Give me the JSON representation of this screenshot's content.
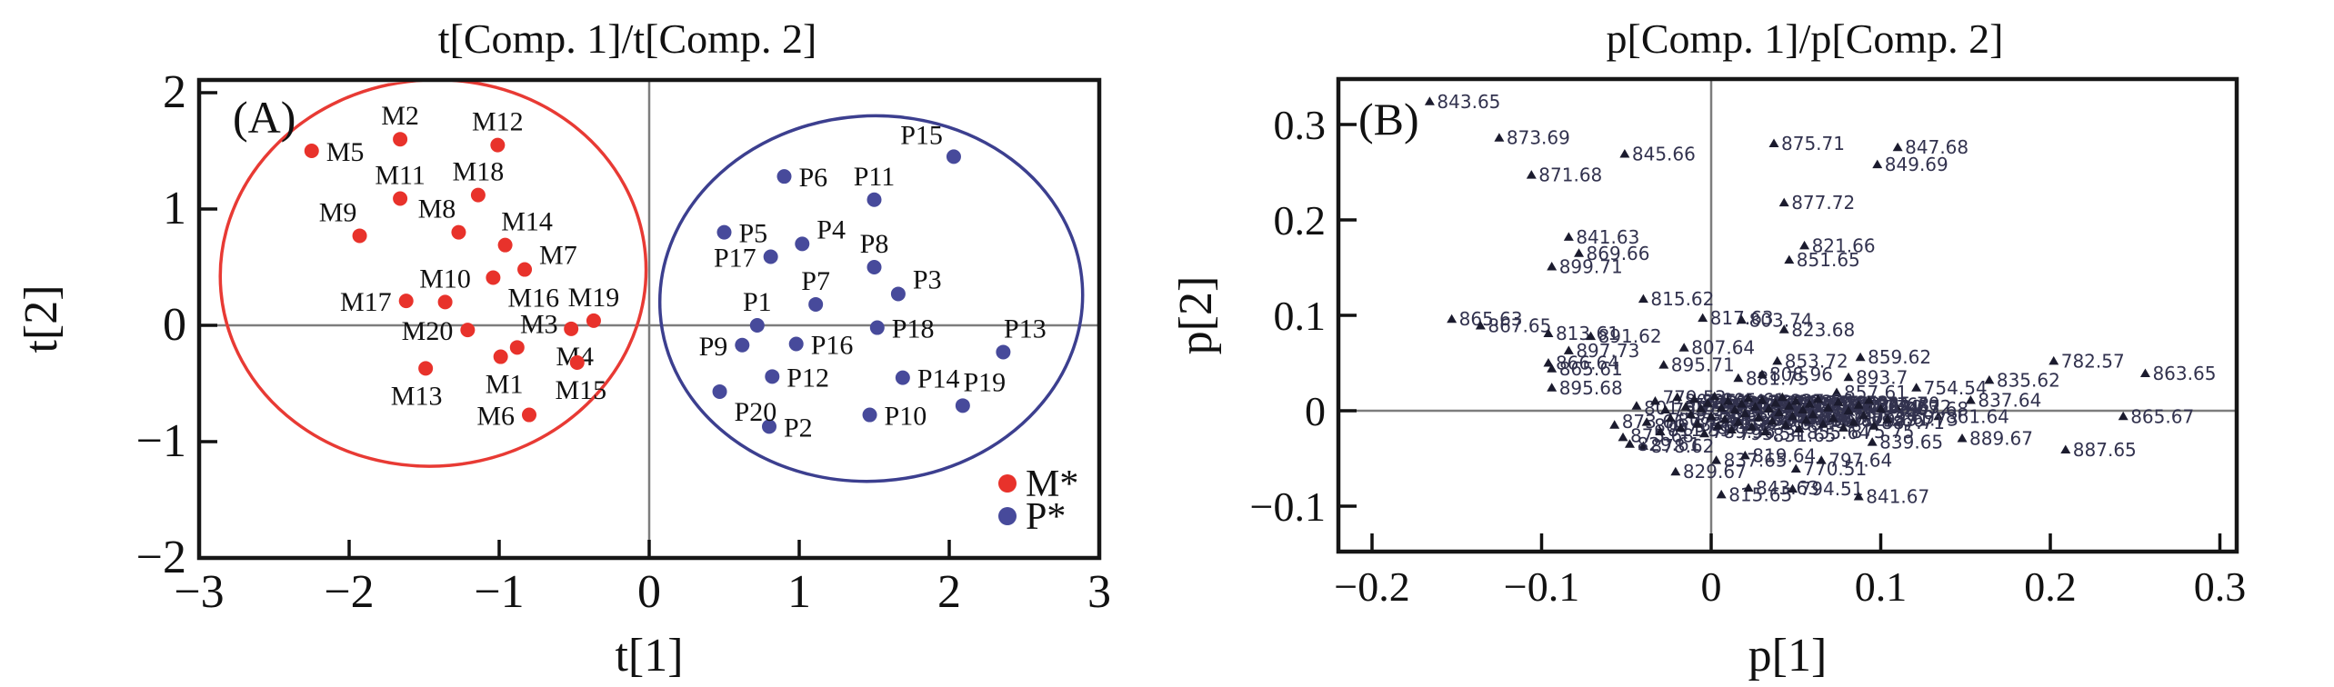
{
  "figure_caption": "",
  "chart_data": [
    {
      "type": "scatter",
      "panel": "A",
      "title": "t[Comp. 1]/t[Comp. 2]",
      "corner_label": "(A)",
      "xlabel": "t[1]",
      "ylabel": "t[2]",
      "xlim": [
        -3,
        3
      ],
      "ylim": [
        -2,
        2.11
      ],
      "grid": false,
      "x_ticks": [
        -3,
        -2,
        -1,
        0,
        1,
        2,
        3
      ],
      "x_tick_labels": [
        "−3",
        "−2",
        "−1",
        "0",
        "1",
        "2",
        "3"
      ],
      "y_ticks": [
        -2,
        -1,
        0,
        1,
        2
      ],
      "y_tick_labels": [
        "−2",
        "−1",
        "0",
        "1",
        "2"
      ],
      "legend": {
        "position": "bottom-right",
        "entries": [
          {
            "label": "M*",
            "color": "#e8322b"
          },
          {
            "label": "P*",
            "color": "#474a9b"
          }
        ]
      },
      "ellipses": [
        {
          "name": "M-cluster-ellipse",
          "color": "#e83a34",
          "cx": -1.44,
          "cy": 0.45,
          "rx": 1.42,
          "ry": 1.66,
          "rot": -5
        },
        {
          "name": "P-cluster-ellipse",
          "color": "#3c3f8f",
          "cx": 1.48,
          "cy": 0.23,
          "rx": 1.41,
          "ry": 1.57,
          "rot": -4
        }
      ],
      "series": [
        {
          "name": "M*",
          "color": "#e8322b",
          "marker": "circle",
          "points": [
            {
              "label": "M1",
              "x": -0.99,
              "y": -0.27,
              "lp": "below"
            },
            {
              "label": "M2",
              "x": -1.66,
              "y": 1.6,
              "lp": "above"
            },
            {
              "label": "M3",
              "x": -0.88,
              "y": -0.19,
              "lp": "above-right"
            },
            {
              "label": "M4",
              "x": -0.52,
              "y": -0.03,
              "lp": "below"
            },
            {
              "label": "M5",
              "x": -2.25,
              "y": 1.5,
              "lp": "right"
            },
            {
              "label": "M6",
              "x": -0.8,
              "y": -0.77,
              "lp": "left"
            },
            {
              "label": "M7",
              "x": -0.83,
              "y": 0.48,
              "lp": "right-above"
            },
            {
              "label": "M8",
              "x": -1.27,
              "y": 0.8,
              "lp": "above-left"
            },
            {
              "label": "M9",
              "x": -1.93,
              "y": 0.77,
              "lp": "above-left"
            },
            {
              "label": "M10",
              "x": -1.36,
              "y": 0.2,
              "lp": "above"
            },
            {
              "label": "M11",
              "x": -1.66,
              "y": 1.09,
              "lp": "above"
            },
            {
              "label": "M12",
              "x": -1.01,
              "y": 1.55,
              "lp": "above"
            },
            {
              "label": "M13",
              "x": -1.49,
              "y": -0.37,
              "lp": "below-left"
            },
            {
              "label": "M14",
              "x": -0.96,
              "y": 0.69,
              "lp": "above-right"
            },
            {
              "label": "M15",
              "x": -0.48,
              "y": -0.32,
              "lp": "below"
            },
            {
              "label": "M16",
              "x": -1.04,
              "y": 0.41,
              "lp": "below-right"
            },
            {
              "label": "M17",
              "x": -1.62,
              "y": 0.21,
              "lp": "left"
            },
            {
              "label": "M18",
              "x": -1.14,
              "y": 1.12,
              "lp": "above"
            },
            {
              "label": "M19",
              "x": -0.37,
              "y": 0.04,
              "lp": "above"
            },
            {
              "label": "M20",
              "x": -1.21,
              "y": -0.04,
              "lp": "left"
            }
          ]
        },
        {
          "name": "P*",
          "color": "#474a9b",
          "marker": "circle",
          "points": [
            {
              "label": "P1",
              "x": 0.72,
              "y": 0.0,
              "lp": "above"
            },
            {
              "label": "P2",
              "x": 0.8,
              "y": -0.87,
              "lp": "right"
            },
            {
              "label": "P3",
              "x": 1.66,
              "y": 0.27,
              "lp": "right-above"
            },
            {
              "label": "P4",
              "x": 1.02,
              "y": 0.7,
              "lp": "right-above"
            },
            {
              "label": "P5",
              "x": 0.5,
              "y": 0.8,
              "lp": "right"
            },
            {
              "label": "P6",
              "x": 0.9,
              "y": 1.28,
              "lp": "right"
            },
            {
              "label": "P7",
              "x": 1.11,
              "y": 0.18,
              "lp": "above"
            },
            {
              "label": "P8",
              "x": 1.5,
              "y": 0.5,
              "lp": "above"
            },
            {
              "label": "P9",
              "x": 0.62,
              "y": -0.17,
              "lp": "left"
            },
            {
              "label": "P10",
              "x": 1.47,
              "y": -0.77,
              "lp": "right"
            },
            {
              "label": "P11",
              "x": 1.5,
              "y": 1.08,
              "lp": "above"
            },
            {
              "label": "P12",
              "x": 0.82,
              "y": -0.44,
              "lp": "right"
            },
            {
              "label": "P13",
              "x": 2.36,
              "y": -0.23,
              "lp": "above-right"
            },
            {
              "label": "P14",
              "x": 1.69,
              "y": -0.45,
              "lp": "right"
            },
            {
              "label": "P15",
              "x": 2.03,
              "y": 1.45,
              "lp": "left-above"
            },
            {
              "label": "P16",
              "x": 0.98,
              "y": -0.16,
              "lp": "right"
            },
            {
              "label": "P17",
              "x": 0.81,
              "y": 0.59,
              "lp": "left"
            },
            {
              "label": "P18",
              "x": 1.52,
              "y": -0.02,
              "lp": "right"
            },
            {
              "label": "P19",
              "x": 2.09,
              "y": -0.69,
              "lp": "above-right"
            },
            {
              "label": "P20",
              "x": 0.47,
              "y": -0.57,
              "lp": "below-right"
            }
          ]
        }
      ]
    },
    {
      "type": "scatter",
      "panel": "B",
      "title": "p[Comp. 1]/p[Comp. 2]",
      "corner_label": "(B)",
      "xlabel": "p[1]",
      "ylabel": "p[2]",
      "xlim": [
        -0.22,
        0.31
      ],
      "ylim": [
        -0.148,
        0.348
      ],
      "grid": false,
      "marker": "triangle",
      "marker_color": "#1b1b2e",
      "label_color": "#32324e",
      "x_ticks": [
        -0.2,
        -0.1,
        0,
        0.1,
        0.2,
        0.3
      ],
      "x_tick_labels": [
        "−0.2",
        "−0.1",
        "0",
        "0.1",
        "0.2",
        "0.3"
      ],
      "y_ticks": [
        -0.1,
        0,
        0.1,
        0.2,
        0.3
      ],
      "y_tick_labels": [
        "−0.1",
        "0",
        "0.1",
        "0.2",
        "0.3"
      ],
      "points": [
        {
          "x": -0.166,
          "y": 0.324,
          "label": "843.65"
        },
        {
          "x": -0.125,
          "y": 0.286,
          "label": "873.69"
        },
        {
          "x": -0.051,
          "y": 0.269,
          "label": "845.66"
        },
        {
          "x": -0.106,
          "y": 0.247,
          "label": "871.68"
        },
        {
          "x": 0.037,
          "y": 0.28,
          "label": "875.71"
        },
        {
          "x": 0.11,
          "y": 0.276,
          "label": "847.68"
        },
        {
          "x": 0.098,
          "y": 0.258,
          "label": "849.69"
        },
        {
          "x": 0.043,
          "y": 0.218,
          "label": "877.72"
        },
        {
          "x": -0.084,
          "y": 0.182,
          "label": "841.63"
        },
        {
          "x": -0.078,
          "y": 0.165,
          "label": "869.66"
        },
        {
          "x": -0.094,
          "y": 0.151,
          "label": "899.71"
        },
        {
          "x": 0.055,
          "y": 0.173,
          "label": "821.66"
        },
        {
          "x": 0.046,
          "y": 0.158,
          "label": "851.65"
        },
        {
          "x": -0.04,
          "y": 0.117,
          "label": "815.62"
        },
        {
          "x": -0.153,
          "y": 0.096,
          "label": "865.63"
        },
        {
          "x": -0.136,
          "y": 0.089,
          "label": "867.65"
        },
        {
          "x": -0.096,
          "y": 0.081,
          "label": "813.61"
        },
        {
          "x": -0.071,
          "y": 0.078,
          "label": "891.62"
        },
        {
          "x": -0.084,
          "y": 0.063,
          "label": "897.73"
        },
        {
          "x": -0.096,
          "y": 0.05,
          "label": "866.64"
        },
        {
          "x": -0.094,
          "y": 0.044,
          "label": "865.61"
        },
        {
          "x": -0.094,
          "y": 0.024,
          "label": "895.68"
        },
        {
          "x": -0.005,
          "y": 0.097,
          "label": "817.63"
        },
        {
          "x": 0.018,
          "y": 0.095,
          "label": "803.74"
        },
        {
          "x": 0.043,
          "y": 0.085,
          "label": "823.68"
        },
        {
          "x": -0.016,
          "y": 0.066,
          "label": "807.64"
        },
        {
          "x": -0.028,
          "y": 0.048,
          "label": "895.71"
        },
        {
          "x": 0.088,
          "y": 0.056,
          "label": "859.62"
        },
        {
          "x": 0.039,
          "y": 0.052,
          "label": "853.72"
        },
        {
          "x": 0.081,
          "y": 0.035,
          "label": "893.7"
        },
        {
          "x": 0.016,
          "y": 0.034,
          "label": "881.75"
        },
        {
          "x": 0.03,
          "y": 0.038,
          "label": "808.96"
        },
        {
          "x": 0.074,
          "y": 0.019,
          "label": "857.61"
        },
        {
          "x": 0.038,
          "y": -0.005,
          "label": "798.59"
        },
        {
          "x": 0.121,
          "y": 0.024,
          "label": "754.54"
        },
        {
          "x": 0.164,
          "y": 0.032,
          "label": "835.62"
        },
        {
          "x": 0.202,
          "y": 0.052,
          "label": "782.57"
        },
        {
          "x": 0.256,
          "y": 0.039,
          "label": "863.65"
        },
        {
          "x": 0.153,
          "y": 0.011,
          "label": "837.64"
        },
        {
          "x": 0.134,
          "y": -0.006,
          "label": "861.64"
        },
        {
          "x": 0.243,
          "y": -0.006,
          "label": "865.67"
        },
        {
          "x": 0.11,
          "y": 0.002,
          "label": "867.68"
        },
        {
          "x": 0.093,
          "y": 0.004,
          "label": "869.63"
        },
        {
          "x": 0.095,
          "y": -0.033,
          "label": "839.65"
        },
        {
          "x": 0.148,
          "y": -0.029,
          "label": "889.67"
        },
        {
          "x": 0.209,
          "y": -0.041,
          "label": "887.65"
        },
        {
          "x": -0.04,
          "y": -0.037,
          "label": "878.62"
        },
        {
          "x": -0.021,
          "y": -0.064,
          "label": "829.67"
        },
        {
          "x": 0.003,
          "y": -0.052,
          "label": "837.65"
        },
        {
          "x": 0.05,
          "y": -0.061,
          "label": "770.51"
        },
        {
          "x": 0.065,
          "y": -0.052,
          "label": "797.64"
        },
        {
          "x": 0.006,
          "y": -0.088,
          "label": "815.65"
        },
        {
          "x": 0.022,
          "y": -0.081,
          "label": "843.63"
        },
        {
          "x": 0.048,
          "y": -0.082,
          "label": "794.51"
        },
        {
          "x": 0.087,
          "y": -0.09,
          "label": "841.67"
        },
        {
          "x": 0.02,
          "y": -0.047,
          "label": "819.64"
        }
      ],
      "cluster_points": [
        [
          -0.057,
          -0.015,
          "873.66"
        ],
        [
          -0.052,
          -0.028,
          "875.68"
        ],
        [
          -0.048,
          -0.035,
          "829.61"
        ],
        [
          -0.044,
          0.005,
          "801.55"
        ],
        [
          -0.038,
          -0.012,
          "805.57"
        ],
        [
          -0.033,
          0.01,
          "779.53"
        ],
        [
          -0.03,
          -0.022,
          "811.59"
        ],
        [
          -0.027,
          0.001,
          "793.52"
        ],
        [
          -0.024,
          -0.008,
          "807.58"
        ],
        [
          -0.02,
          0.014,
          "809.61"
        ],
        [
          -0.018,
          -0.018,
          "783.51"
        ],
        [
          -0.015,
          0.004,
          "797.55"
        ],
        [
          -0.012,
          -0.004,
          "785.55"
        ],
        [
          -0.01,
          0.012,
          "825.64"
        ],
        [
          -0.008,
          -0.014,
          "787.54"
        ],
        [
          -0.006,
          0.002,
          "799.57"
        ],
        [
          -0.004,
          -0.024,
          "789.56"
        ],
        [
          -0.002,
          0.008,
          "827.63"
        ],
        [
          0.0,
          -0.006,
          "791.58"
        ],
        [
          0.002,
          0.015,
          "805.61"
        ],
        [
          0.004,
          -0.016,
          "811.63"
        ],
        [
          0.006,
          0.003,
          "813.59"
        ],
        [
          0.008,
          -0.009,
          "815.60"
        ],
        [
          0.01,
          0.01,
          "831.62"
        ],
        [
          0.012,
          -0.02,
          "795.54"
        ],
        [
          0.014,
          0.001,
          "817.61"
        ],
        [
          0.016,
          -0.012,
          "833.64"
        ],
        [
          0.018,
          0.007,
          "819.62"
        ],
        [
          0.02,
          -0.003,
          "821.63"
        ],
        [
          0.022,
          0.013,
          "835.66"
        ],
        [
          0.024,
          -0.017,
          "823.65"
        ],
        [
          0.026,
          0.004,
          "825.61"
        ],
        [
          0.028,
          -0.007,
          "827.66"
        ],
        [
          0.03,
          0.011,
          "829.63"
        ],
        [
          0.032,
          -0.022,
          "831.65"
        ],
        [
          0.034,
          0.002,
          "833.67"
        ],
        [
          0.036,
          -0.011,
          "845.63"
        ],
        [
          0.038,
          0.008,
          "835.68"
        ],
        [
          0.04,
          -0.002,
          "847.64"
        ],
        [
          0.042,
          0.014,
          "837.66"
        ],
        [
          0.044,
          -0.015,
          "849.66"
        ],
        [
          0.046,
          0.005,
          "839.68"
        ],
        [
          0.048,
          -0.006,
          "851.67"
        ],
        [
          0.05,
          0.01,
          "853.69"
        ],
        [
          0.052,
          -0.019,
          "855.64"
        ],
        [
          0.054,
          0.001,
          "857.66"
        ],
        [
          0.056,
          -0.01,
          "859.68"
        ],
        [
          0.058,
          0.007,
          "861.69"
        ],
        [
          0.06,
          -0.004,
          "863.70"
        ],
        [
          0.063,
          0.012,
          "865.72"
        ],
        [
          0.066,
          -0.014,
          "867.71"
        ],
        [
          0.069,
          0.003,
          "869.72"
        ],
        [
          0.072,
          -0.008,
          "871.73"
        ],
        [
          0.075,
          0.009,
          "873.74"
        ],
        [
          0.078,
          -0.018,
          "875.75"
        ],
        [
          0.081,
          0.0,
          "877.74"
        ],
        [
          0.084,
          -0.012,
          "879.66"
        ],
        [
          0.087,
          0.006,
          "881.68"
        ],
        [
          0.09,
          -0.005,
          "883.69"
        ],
        [
          0.093,
          0.011,
          "885.70"
        ],
        [
          0.096,
          -0.016,
          "887.71"
        ],
        [
          0.1,
          0.002,
          "889.72"
        ],
        [
          0.104,
          -0.009,
          "891.73"
        ]
      ]
    }
  ]
}
